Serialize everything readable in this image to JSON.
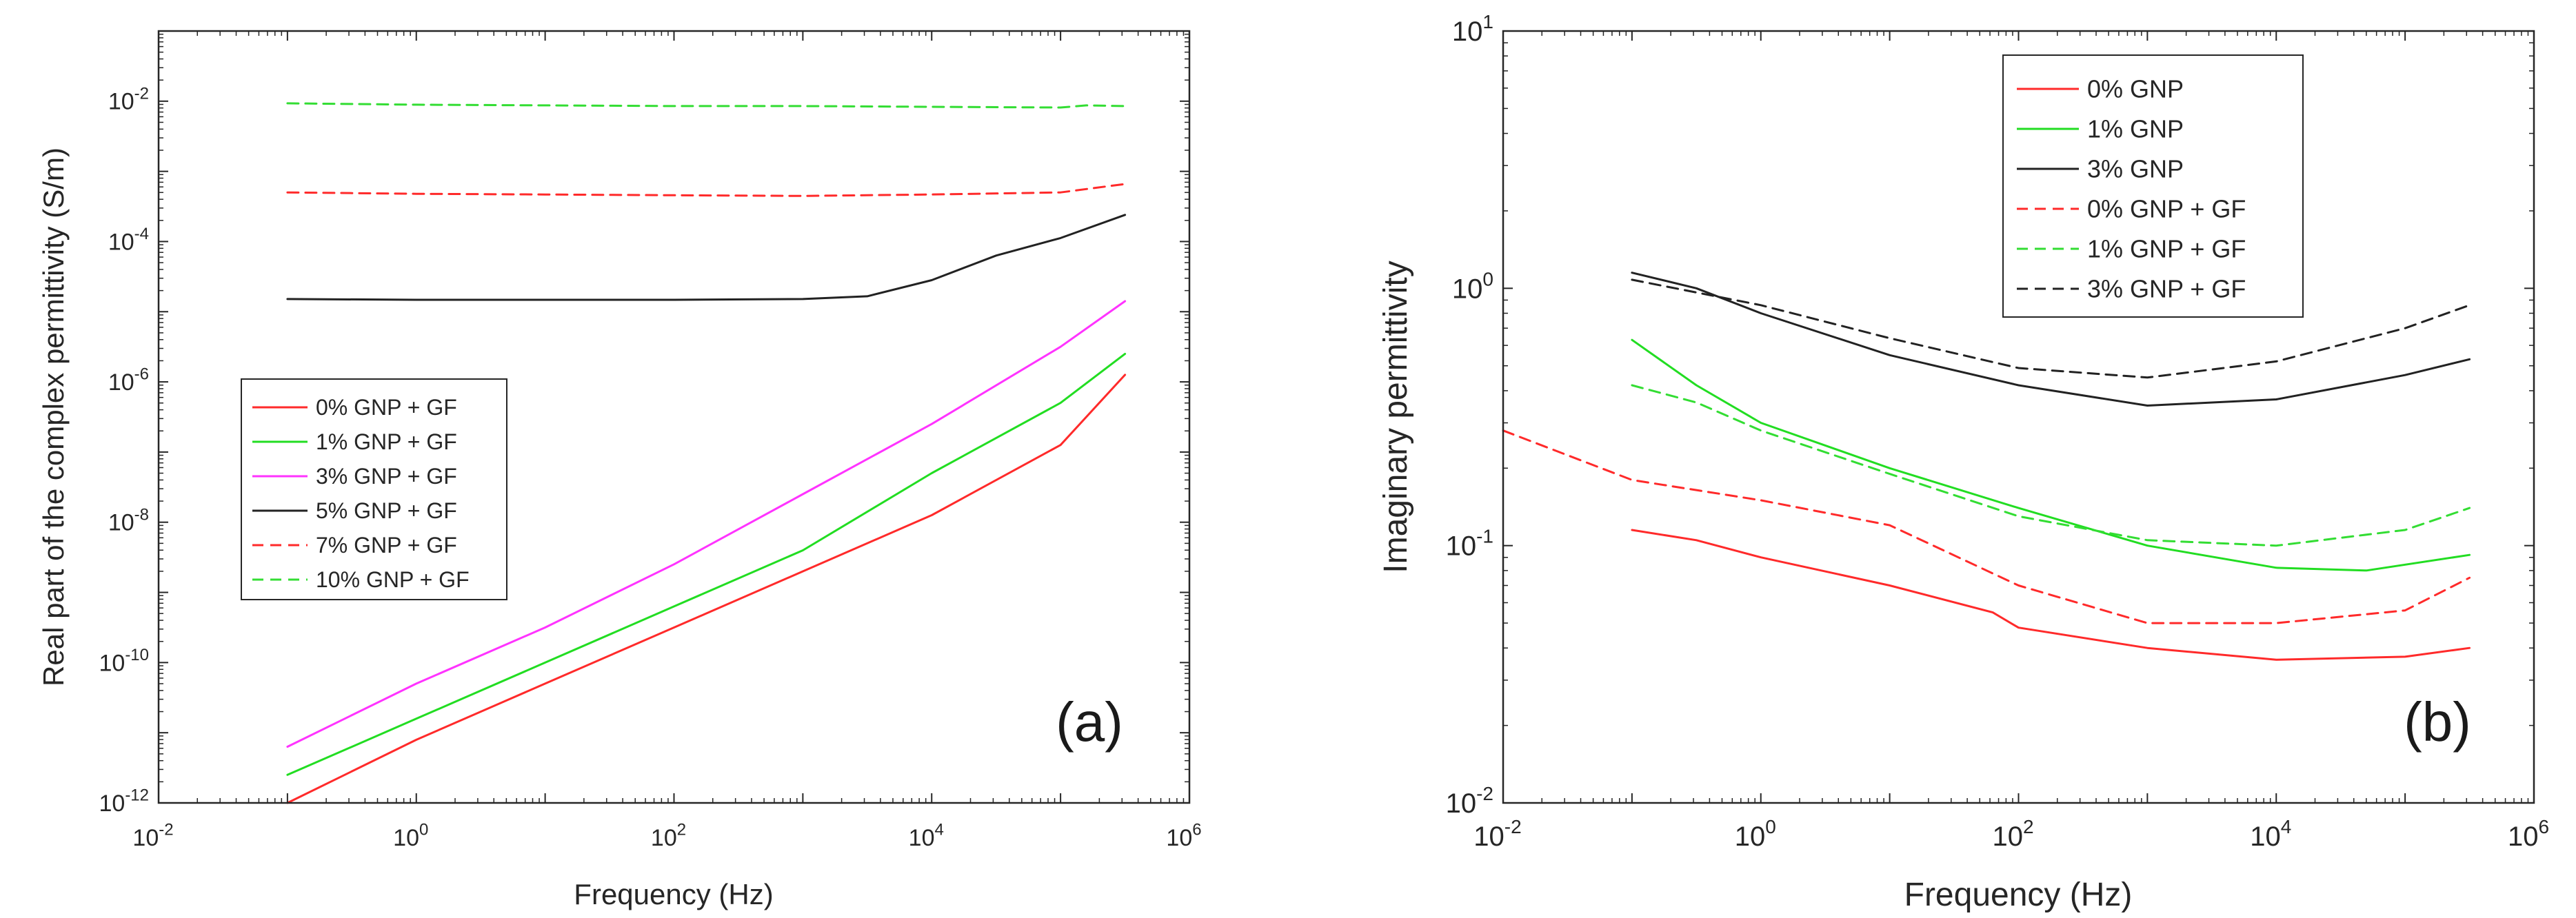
{
  "chart_data": [
    {
      "type": "line",
      "panel_label": "(a)",
      "xlabel": "Frequency (Hz)",
      "ylabel": "Real part of the complex permittivity (S/m)",
      "xscale": "log",
      "yscale": "log",
      "xlim_exp": [
        -2,
        6
      ],
      "ylim_exp": [
        -12,
        -1
      ],
      "xticks": [
        {
          "base": "10",
          "exp": "-2"
        },
        {
          "base": "10",
          "exp": "0"
        },
        {
          "base": "10",
          "exp": "2"
        },
        {
          "base": "10",
          "exp": "4"
        },
        {
          "base": "10",
          "exp": "6"
        }
      ],
      "yticks": [
        {
          "base": "10",
          "exp": "-12"
        },
        {
          "base": "10",
          "exp": "-10"
        },
        {
          "base": "10",
          "exp": "-8"
        },
        {
          "base": "10",
          "exp": "-6"
        },
        {
          "base": "10",
          "exp": "-4"
        },
        {
          "base": "10",
          "exp": "-2"
        }
      ],
      "legend_position": "middle-left",
      "series": [
        {
          "name": "0% GNP + GF",
          "color": "#ff2a2a",
          "dash": "solid",
          "points": [
            [
              -1,
              -12.0
            ],
            [
              0,
              -11.1
            ],
            [
              1,
              -10.3
            ],
            [
              2,
              -9.5
            ],
            [
              3,
              -8.7
            ],
            [
              4,
              -7.9
            ],
            [
              5,
              -6.9
            ],
            [
              5.5,
              -5.9
            ]
          ]
        },
        {
          "name": "1% GNP + GF",
          "color": "#22dd22",
          "dash": "solid",
          "points": [
            [
              -1,
              -11.6
            ],
            [
              0,
              -10.8
            ],
            [
              1,
              -10.0
            ],
            [
              2,
              -9.2
            ],
            [
              3,
              -8.4
            ],
            [
              4,
              -7.3
            ],
            [
              5,
              -6.3
            ],
            [
              5.5,
              -5.6
            ]
          ]
        },
        {
          "name": "3% GNP + GF",
          "color": "#ff33ff",
          "dash": "solid",
          "points": [
            [
              -1,
              -11.2
            ],
            [
              0,
              -10.3
            ],
            [
              1,
              -9.5
            ],
            [
              2,
              -8.6
            ],
            [
              3,
              -7.6
            ],
            [
              4,
              -6.6
            ],
            [
              5,
              -5.5
            ],
            [
              5.5,
              -4.85
            ]
          ]
        },
        {
          "name": "5% GNP + GF",
          "color": "#222222",
          "dash": "solid",
          "points": [
            [
              -1,
              -4.82
            ],
            [
              0,
              -4.83
            ],
            [
              1,
              -4.83
            ],
            [
              2,
              -4.83
            ],
            [
              3,
              -4.82
            ],
            [
              3.5,
              -4.78
            ],
            [
              4,
              -4.55
            ],
            [
              4.5,
              -4.2
            ],
            [
              5,
              -3.95
            ],
            [
              5.5,
              -3.62
            ]
          ]
        },
        {
          "name": "7% GNP + GF",
          "color": "#ff2a2a",
          "dash": "dashed",
          "points": [
            [
              -1,
              -3.3
            ],
            [
              0,
              -3.32
            ],
            [
              1,
              -3.33
            ],
            [
              2,
              -3.34
            ],
            [
              3,
              -3.35
            ],
            [
              4,
              -3.33
            ],
            [
              5,
              -3.3
            ],
            [
              5.5,
              -3.18
            ]
          ]
        },
        {
          "name": "10% GNP + GF",
          "color": "#33dd33",
          "dash": "dashed",
          "points": [
            [
              -1,
              -2.03
            ],
            [
              0,
              -2.05
            ],
            [
              1,
              -2.06
            ],
            [
              2,
              -2.07
            ],
            [
              3,
              -2.07
            ],
            [
              4,
              -2.08
            ],
            [
              5,
              -2.09
            ],
            [
              5.2,
              -2.06
            ],
            [
              5.5,
              -2.07
            ]
          ]
        }
      ]
    },
    {
      "type": "line",
      "panel_label": "(b)",
      "xlabel": "Frequency (Hz)",
      "ylabel": "Imaginary permittivity",
      "xscale": "log",
      "yscale": "log",
      "xlim_exp": [
        -2,
        6
      ],
      "ylim_exp": [
        -2,
        1
      ],
      "xticks": [
        {
          "base": "10",
          "exp": "-2"
        },
        {
          "base": "10",
          "exp": "0"
        },
        {
          "base": "10",
          "exp": "2"
        },
        {
          "base": "10",
          "exp": "4"
        },
        {
          "base": "10",
          "exp": "6"
        }
      ],
      "yticks": [
        {
          "base": "10",
          "exp": "-2"
        },
        {
          "base": "10",
          "exp": "-1"
        },
        {
          "base": "10",
          "exp": "0"
        },
        {
          "base": "10",
          "exp": "1"
        }
      ],
      "legend_position": "top-center",
      "series": [
        {
          "name": "0% GNP",
          "color": "#ff2a2a",
          "dash": "solid",
          "points": [
            [
              -1,
              0.115
            ],
            [
              -0.5,
              0.105
            ],
            [
              0,
              0.09
            ],
            [
              1,
              0.07
            ],
            [
              1.8,
              0.055
            ],
            [
              2,
              0.048
            ],
            [
              3,
              0.04
            ],
            [
              4,
              0.036
            ],
            [
              5,
              0.037
            ],
            [
              5.5,
              0.04
            ]
          ]
        },
        {
          "name": "1% GNP",
          "color": "#22dd22",
          "dash": "solid",
          "points": [
            [
              -1,
              0.63
            ],
            [
              -0.5,
              0.42
            ],
            [
              0,
              0.3
            ],
            [
              1,
              0.2
            ],
            [
              2,
              0.14
            ],
            [
              3,
              0.1
            ],
            [
              4,
              0.082
            ],
            [
              4.7,
              0.08
            ],
            [
              5.5,
              0.092
            ]
          ]
        },
        {
          "name": "3% GNP",
          "color": "#222222",
          "dash": "solid",
          "points": [
            [
              -1,
              1.15
            ],
            [
              -0.5,
              1.0
            ],
            [
              0,
              0.8
            ],
            [
              1,
              0.55
            ],
            [
              2,
              0.42
            ],
            [
              3,
              0.35
            ],
            [
              4,
              0.37
            ],
            [
              5,
              0.46
            ],
            [
              5.5,
              0.53
            ]
          ]
        },
        {
          "name": "0% GNP + GF",
          "color": "#ff2a2a",
          "dash": "dashed",
          "points": [
            [
              -2,
              0.28
            ],
            [
              -1,
              0.18
            ],
            [
              0,
              0.15
            ],
            [
              1,
              0.12
            ],
            [
              2,
              0.07
            ],
            [
              3,
              0.05
            ],
            [
              4,
              0.05
            ],
            [
              5,
              0.056
            ],
            [
              5.5,
              0.075
            ]
          ]
        },
        {
          "name": "1% GNP + GF",
          "color": "#33dd33",
          "dash": "dashed",
          "points": [
            [
              -1,
              0.42
            ],
            [
              -0.5,
              0.36
            ],
            [
              0,
              0.28
            ],
            [
              1,
              0.19
            ],
            [
              2,
              0.13
            ],
            [
              3,
              0.105
            ],
            [
              4,
              0.1
            ],
            [
              5,
              0.115
            ],
            [
              5.5,
              0.14
            ]
          ]
        },
        {
          "name": "3% GNP + GF",
          "color": "#222222",
          "dash": "dashed",
          "points": [
            [
              -1,
              1.08
            ],
            [
              0,
              0.86
            ],
            [
              1,
              0.64
            ],
            [
              2,
              0.49
            ],
            [
              3,
              0.45
            ],
            [
              4,
              0.52
            ],
            [
              5,
              0.7
            ],
            [
              5.5,
              0.86
            ]
          ]
        }
      ]
    }
  ]
}
